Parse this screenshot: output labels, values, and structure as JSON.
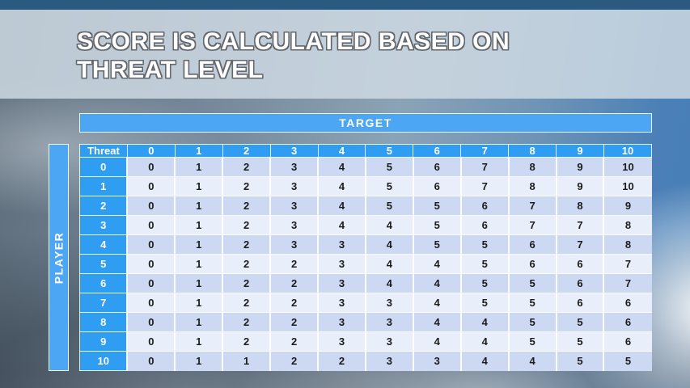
{
  "slide": {
    "title_line1": "SCORE IS CALCULATED BASED ON",
    "title_line2": "THREAT LEVEL"
  },
  "axes": {
    "target_label": "TARGET",
    "player_label": "PLAYER"
  },
  "table": {
    "corner_label": "Threat",
    "column_headers": [
      "0",
      "1",
      "2",
      "3",
      "4",
      "5",
      "6",
      "7",
      "8",
      "9",
      "10"
    ],
    "rows": [
      {
        "label": "0",
        "cells": [
          0,
          1,
          2,
          3,
          4,
          5,
          6,
          7,
          8,
          9,
          10
        ]
      },
      {
        "label": "1",
        "cells": [
          0,
          1,
          2,
          3,
          4,
          5,
          6,
          7,
          8,
          9,
          10
        ]
      },
      {
        "label": "2",
        "cells": [
          0,
          1,
          2,
          3,
          4,
          5,
          5,
          6,
          7,
          8,
          9
        ]
      },
      {
        "label": "3",
        "cells": [
          0,
          1,
          2,
          3,
          4,
          4,
          5,
          6,
          7,
          7,
          8
        ]
      },
      {
        "label": "4",
        "cells": [
          0,
          1,
          2,
          3,
          3,
          4,
          5,
          5,
          6,
          7,
          8
        ]
      },
      {
        "label": "5",
        "cells": [
          0,
          1,
          2,
          2,
          3,
          4,
          4,
          5,
          6,
          6,
          7
        ]
      },
      {
        "label": "6",
        "cells": [
          0,
          1,
          2,
          2,
          3,
          4,
          4,
          5,
          5,
          6,
          7
        ]
      },
      {
        "label": "7",
        "cells": [
          0,
          1,
          2,
          2,
          3,
          3,
          4,
          5,
          5,
          6,
          6
        ]
      },
      {
        "label": "8",
        "cells": [
          0,
          1,
          2,
          2,
          3,
          3,
          4,
          4,
          5,
          5,
          6
        ]
      },
      {
        "label": "9",
        "cells": [
          0,
          1,
          2,
          2,
          3,
          3,
          4,
          4,
          5,
          5,
          6
        ]
      },
      {
        "label": "10",
        "cells": [
          0,
          1,
          1,
          2,
          2,
          3,
          3,
          4,
          4,
          5,
          5
        ]
      }
    ]
  },
  "colors": {
    "bar_blue": "#4da6f3",
    "header_blue": "#2f9df2",
    "row_shade_dark": "#cdd9f3",
    "row_shade_light": "#e9eefb",
    "cell_text": "#1c1c1c",
    "title_text": "#ffffff",
    "title_band": "#ced9e3",
    "top_strip": "#2b5a80"
  }
}
